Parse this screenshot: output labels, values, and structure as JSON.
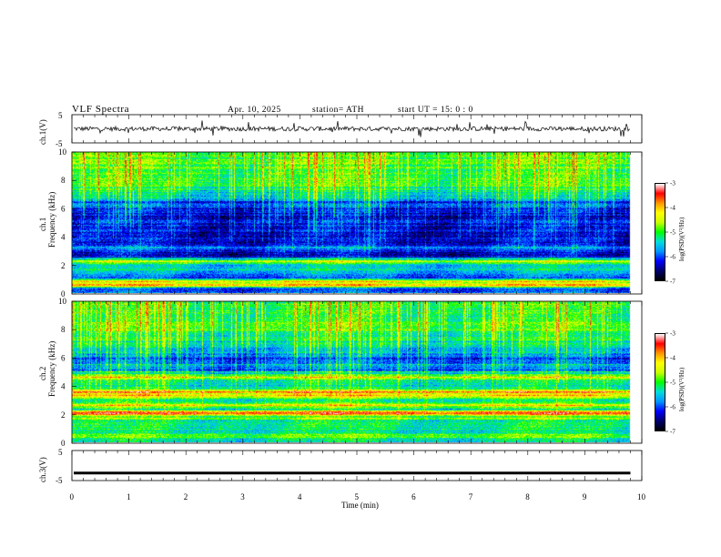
{
  "header": {
    "title": "VLF  Spectra",
    "date": "Apr. 10, 2025",
    "station": "station= ATH",
    "start": "start  UT  =    15: 0   : 0"
  },
  "colors": {
    "scale": [
      "#000000",
      "#00006e",
      "#0000ff",
      "#0096ff",
      "#00dcdc",
      "#00ff00",
      "#c8ff00",
      "#ffff00",
      "#ff9600",
      "#ff0000",
      "#ffffff"
    ]
  },
  "chart_data": [
    {
      "type": "line",
      "ylabel": "ch.1(V)",
      "ylim": [
        -5,
        5
      ],
      "y_tick_labels": [
        "5",
        "-5"
      ],
      "baseline_level": 0,
      "noise_range": [
        -0.8,
        0.8
      ],
      "spike_range": [
        -3,
        3
      ]
    },
    {
      "type": "heatmap",
      "ylabel_channel": "ch.1",
      "ylabel": "Frequency  (kHz)",
      "ylim": [
        0,
        10
      ],
      "y_tick_labels": [
        "0",
        "2",
        "4",
        "6",
        "8",
        "10"
      ],
      "colorbar": {
        "label": "log(PSD)(V²/Hz)",
        "range": [
          -7,
          -3
        ],
        "tick_labels": [
          "-3",
          "-4",
          "-5",
          "-6",
          "-7"
        ]
      },
      "bands_khz": [
        {
          "center": 0.1,
          "intensity": 0.0
        },
        {
          "center": 0.55,
          "intensity": 0.9
        },
        {
          "center": 0.8,
          "intensity": 0.75
        },
        {
          "center": 1.4,
          "intensity": 0.3
        },
        {
          "center": 2.2,
          "intensity": 0.6
        },
        {
          "center": 3.2,
          "intensity": 0.35
        },
        {
          "center": 4.1,
          "intensity": 0.05
        },
        {
          "center": 5.0,
          "intensity": 0.2
        },
        {
          "center": 6.2,
          "intensity": 0.3
        }
      ]
    },
    {
      "type": "heatmap",
      "ylabel_channel": "ch.2",
      "ylabel": "Frequency  (kHz)",
      "ylim": [
        0,
        10
      ],
      "y_tick_labels": [
        "0",
        "2",
        "4",
        "6",
        "8",
        "10"
      ],
      "colorbar": {
        "label": "log(PSD)(V²/Hz)",
        "range": [
          -7,
          -3
        ],
        "tick_labels": [
          "-3",
          "-4",
          "-5",
          "-6",
          "-7"
        ]
      },
      "bands_khz": [
        {
          "center": 0.4,
          "intensity": 0.55
        },
        {
          "center": 1.1,
          "intensity": 0.5
        },
        {
          "center": 1.7,
          "intensity": 0.6
        },
        {
          "center": 2.05,
          "intensity": 0.95
        },
        {
          "center": 2.6,
          "intensity": 0.7
        },
        {
          "center": 3.3,
          "intensity": 0.75
        },
        {
          "center": 3.55,
          "intensity": 0.85
        },
        {
          "center": 4.6,
          "intensity": 0.7
        },
        {
          "center": 5.5,
          "intensity": 0.35
        }
      ]
    },
    {
      "type": "line",
      "ylabel": "ch.3(V)",
      "ylim": [
        -5,
        5
      ],
      "y_tick_labels": [
        "5",
        "-5"
      ],
      "baseline_level": -2.5
    }
  ],
  "time_axis": {
    "label": "Time  (min)",
    "range": [
      0,
      10
    ],
    "tick_labels": [
      "0",
      "1",
      "2",
      "3",
      "4",
      "5",
      "6",
      "7",
      "8",
      "9",
      "10"
    ],
    "data_end": 9.8
  }
}
